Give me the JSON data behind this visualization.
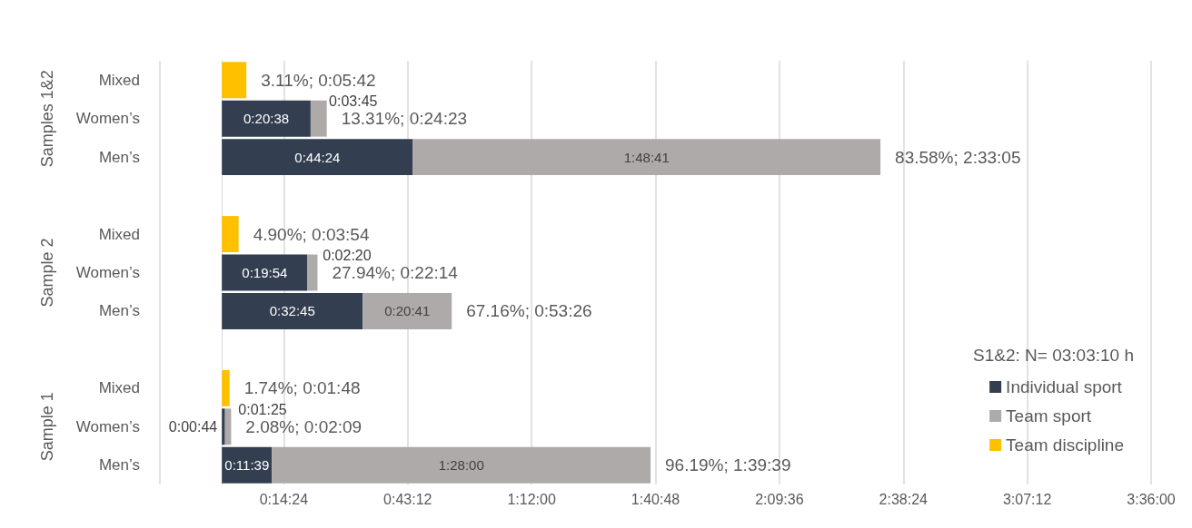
{
  "chart_data": {
    "type": "bar",
    "orientation": "horizontal",
    "stacked": true,
    "categories": [
      "Mixed",
      "Women’s",
      "Men’s",
      null,
      "Mixed",
      "Women’s",
      "Men’s",
      null,
      "Mixed",
      "Women’s",
      "Men’s"
    ],
    "series": [
      {
        "name": "Individual sport",
        "color": "#333f50",
        "values": [
          null,
          0.343889,
          0.74,
          null,
          null,
          0.331667,
          0.545833,
          null,
          null,
          0.012222,
          0.194167
        ],
        "value_labels": [
          null,
          "0:20:38",
          "0:44:24",
          null,
          null,
          "0:19:54",
          "0:32:45",
          null,
          null,
          "0:00:44",
          "0:11:39"
        ]
      },
      {
        "name": "Team sport",
        "color": "#aeaaaa",
        "values": [
          null,
          0.0625,
          1.811389,
          null,
          null,
          0.038889,
          0.344722,
          null,
          null,
          0.023611,
          1.466667
        ],
        "value_labels": [
          null,
          "0:03:45",
          "1:48:41",
          null,
          null,
          "0:02:20",
          "0:20:41",
          null,
          null,
          "0:01:25",
          "1:28:00"
        ]
      },
      {
        "name": "Team discipline",
        "color": "#ffc000",
        "values": [
          0.095,
          0,
          0,
          null,
          0.065,
          0,
          0,
          null,
          0.03,
          0,
          0
        ]
      }
    ],
    "totals": [
      "3.11%; 0:05:42",
      "13.31%; 0:24:23",
      "83.58%; 2:33:05",
      null,
      "4.90%; 0:03:54",
      "27.94%; 0:22:14",
      "67.16%; 0:53:26",
      null,
      "1.74%; 0:01:48",
      "2.08%; 0:02:09",
      "96.19%; 1:39:39"
    ],
    "xlim": [
      -0.24,
      3.6
    ],
    "xticks": [
      {
        "value": -0.24,
        "label": null
      },
      {
        "value": 0.24,
        "label": "0:14:24"
      },
      {
        "value": 0.72,
        "label": "0:43:12"
      },
      {
        "value": 1.2,
        "label": "1:12:00"
      },
      {
        "value": 1.68,
        "label": "1:40:48"
      },
      {
        "value": 2.16,
        "label": "2:09:36"
      },
      {
        "value": 2.64,
        "label": "2:38:24"
      },
      {
        "value": 3.12,
        "label": "3:07:12"
      },
      {
        "value": 3.6,
        "label": "3:36:00"
      }
    ],
    "annotations": [
      "Samples 1&2",
      "Sample 2",
      "Sample 1"
    ],
    "legend_title": "S1&2: N= 03:03:10 h",
    "legend": "bottom right",
    "grid": "x"
  }
}
